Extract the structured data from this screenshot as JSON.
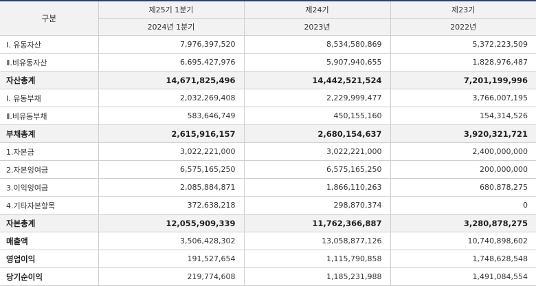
{
  "header": {
    "category_label": "구분",
    "periods": [
      {
        "term": "제25기 1분기",
        "date": "2024년 1분기"
      },
      {
        "term": "제24기",
        "date": "2023년"
      },
      {
        "term": "제23기",
        "date": "2022년"
      }
    ]
  },
  "rows": [
    {
      "label": "Ⅰ. 유동자산",
      "values": [
        "7,976,397,520",
        "8,534,580,869",
        "5,372,223,509"
      ],
      "style": "normal"
    },
    {
      "label": "Ⅱ.비유동자산",
      "values": [
        "6,695,427,976",
        "5,907,940,655",
        "1,828,976,487"
      ],
      "style": "normal"
    },
    {
      "label": "자산총계",
      "values": [
        "14,671,825,496",
        "14,442,521,524",
        "7,201,199,996"
      ],
      "style": "total"
    },
    {
      "label": "Ⅰ. 유동부채",
      "values": [
        "2,032,269,408",
        "2,229,999,477",
        "3,766,007,195"
      ],
      "style": "normal"
    },
    {
      "label": "Ⅱ.비유동부채",
      "values": [
        "583,646,749",
        "450,155,160",
        "154,314,526"
      ],
      "style": "normal"
    },
    {
      "label": "부채총계",
      "values": [
        "2,615,916,157",
        "2,680,154,637",
        "3,920,321,721"
      ],
      "style": "total"
    },
    {
      "label": "1.자본금",
      "values": [
        "3,022,221,000",
        "3,022,221,000",
        "2,400,000,000"
      ],
      "style": "normal"
    },
    {
      "label": "2.자본잉여금",
      "values": [
        "6,575,165,250",
        "6,575,165,250",
        "200,000,000"
      ],
      "style": "normal"
    },
    {
      "label": "3.이익잉여금",
      "values": [
        "2,085,884,871",
        "1,866,110,263",
        "680,878,275"
      ],
      "style": "normal"
    },
    {
      "label": "4.기타자본항목",
      "values": [
        "372,638,218",
        "298,870,374",
        "0"
      ],
      "style": "normal"
    },
    {
      "label": "자본총계",
      "values": [
        "12,055,909,339",
        "11,762,366,887",
        "3,280,878,275"
      ],
      "style": "total"
    },
    {
      "label": "매출액",
      "values": [
        "3,506,428,302",
        "13,058,877,126",
        "10,740,898,602"
      ],
      "style": "bold-label"
    },
    {
      "label": "영업이익",
      "values": [
        "191,527,654",
        "1,115,790,858",
        "1,748,628,548"
      ],
      "style": "bold-label"
    },
    {
      "label": "당기순이익",
      "values": [
        "219,774,608",
        "1,185,231,988",
        "1,491,084,554"
      ],
      "style": "bold-label"
    }
  ]
}
